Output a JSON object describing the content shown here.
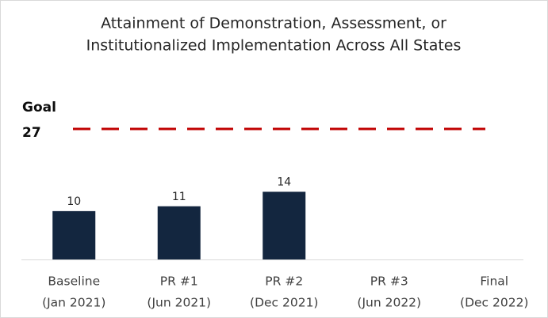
{
  "chart_data": {
    "type": "bar",
    "title": [
      "Attainment of Demonstration, Assessment, or",
      "Institutionalized Implementation Across All States"
    ],
    "categories": [
      [
        "Baseline",
        "(Jan 2021)"
      ],
      [
        "PR #1",
        "(Jun 2021)"
      ],
      [
        "PR #2",
        "(Dec 2021)"
      ],
      [
        "PR #3",
        "(Jun 2022)"
      ],
      [
        "Final",
        "(Dec 2022)"
      ]
    ],
    "values": [
      10,
      11,
      14,
      null,
      null
    ],
    "color": "#13263f",
    "goal": {
      "label": "Goal",
      "value": 27,
      "color": "#c00000"
    }
  }
}
